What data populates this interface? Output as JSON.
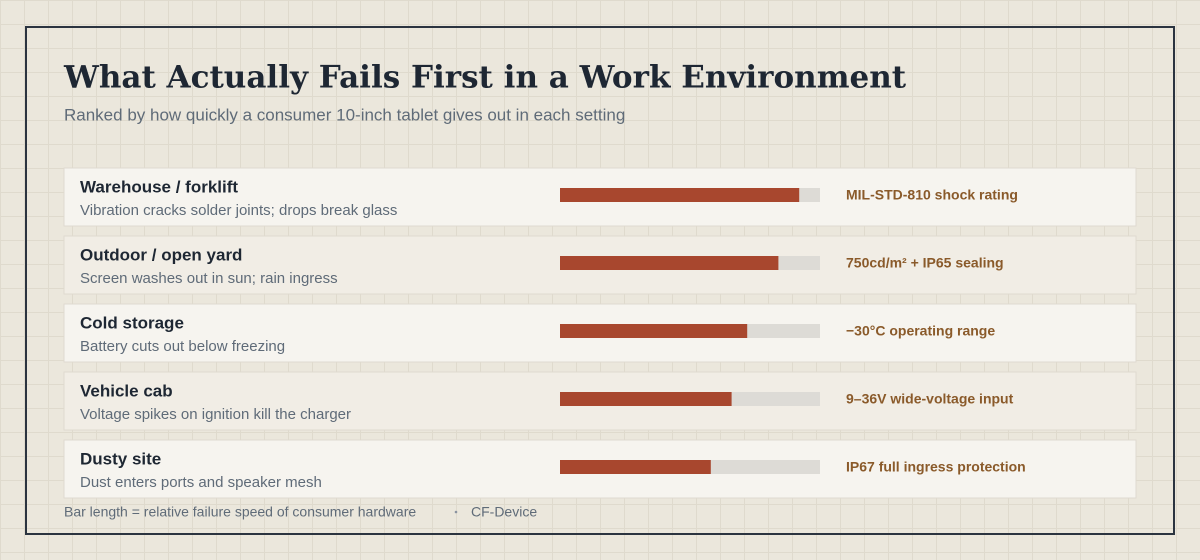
{
  "chart_data": {
    "type": "bar",
    "title": "What Actually Fails First in a Work Environment",
    "subtitle": "Ranked by how quickly a consumer 10-inch tablet gives out in each setting",
    "categories": [
      "Warehouse / forklift",
      "Outdoor / open yard",
      "Cold storage",
      "Vehicle cab",
      "Dusty site"
    ],
    "descriptions": [
      "Vibration cracks solder joints; drops break glass",
      "Screen washes out in sun; rain ingress",
      "Battery cuts out below freezing",
      "Voltage spikes on ignition kill the charger",
      "Dust enters ports and speaker mesh"
    ],
    "annotations": [
      "MIL-STD-810 shock rating",
      "750cd/m² + IP65 sealing",
      "−30°C operating range",
      "9–36V wide-voltage input",
      "IP67 full ingress protection"
    ],
    "values": [
      92,
      84,
      72,
      66,
      58
    ],
    "xlim": [
      0,
      100
    ],
    "color": "#a8472e",
    "track_color": "#dddbd6",
    "footnote": "Bar length = relative failure speed of consumer hardware",
    "source": "CF-Device"
  }
}
